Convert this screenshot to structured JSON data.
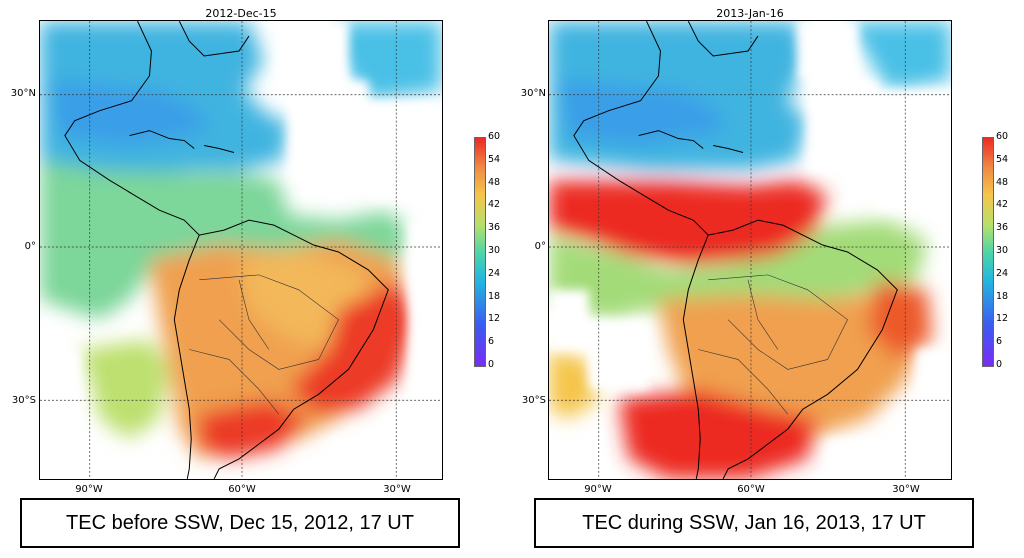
{
  "left": {
    "title": "2012-Dec-15",
    "caption": "TEC before SSW, Dec 15, 2012, 17 UT"
  },
  "right": {
    "title": "2013-Jan-16",
    "caption": "TEC during SSW, Jan 16, 2013, 17 UT"
  },
  "axes": {
    "lat_labels": [
      "30°N",
      "0°",
      "30°S"
    ],
    "lon_labels": [
      "90°W",
      "60°W",
      "30°W"
    ]
  },
  "colorbar": {
    "ticks": [
      "60",
      "54",
      "48",
      "42",
      "36",
      "30",
      "24",
      "18",
      "12",
      "6",
      "0"
    ],
    "colors": [
      "#7a2cf5",
      "#3a5cf2",
      "#23b8dd",
      "#4fd6a6",
      "#b8e06a",
      "#f5c54a",
      "#f08a45",
      "#ec2a24"
    ]
  }
}
